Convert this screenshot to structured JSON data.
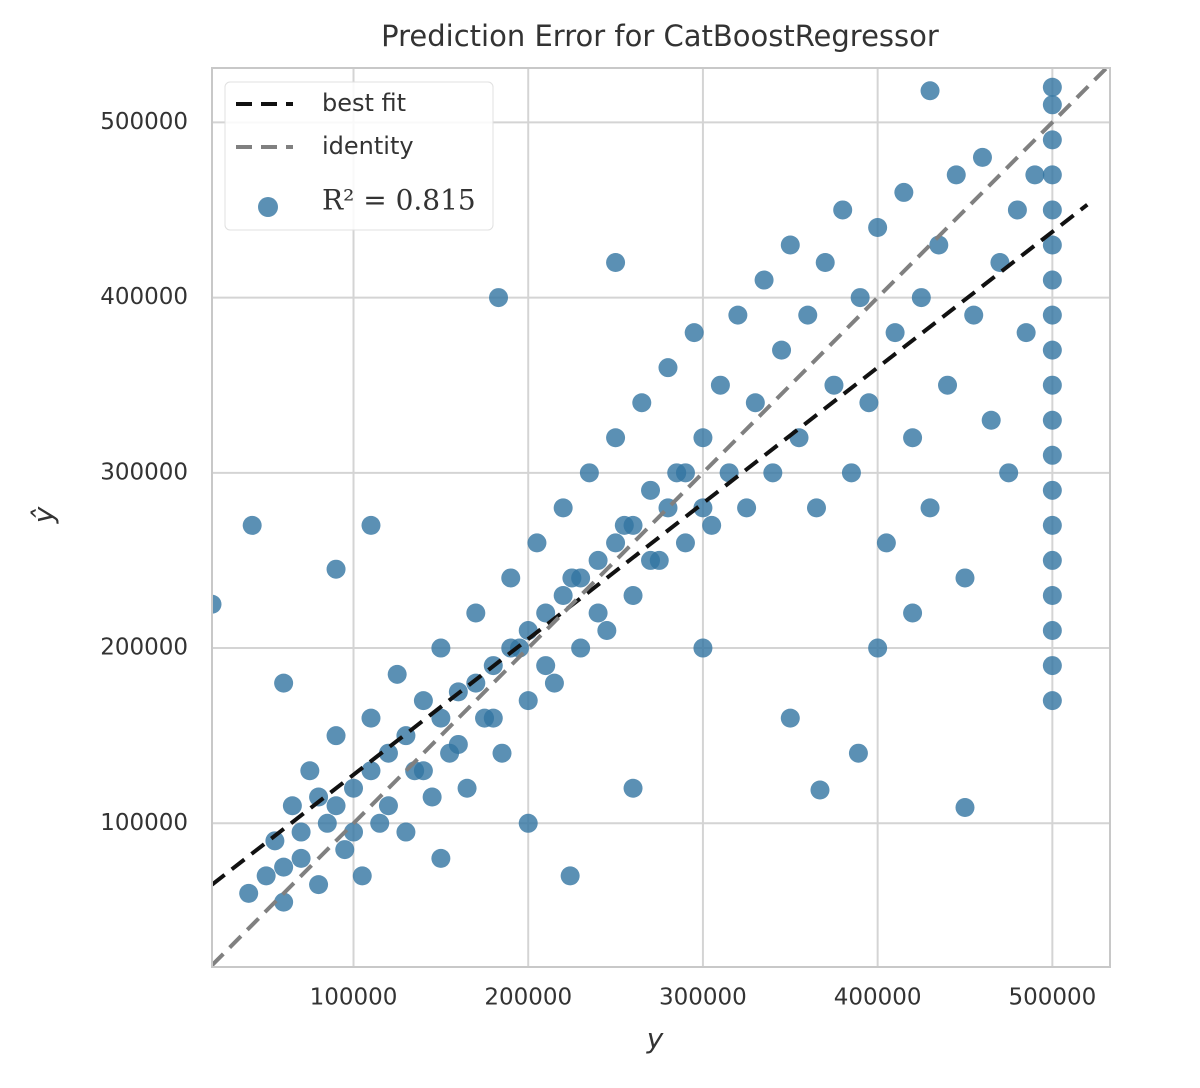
{
  "chart_data": {
    "type": "scatter",
    "title": "Prediction Error for CatBoostRegressor",
    "x_label": "y",
    "y_label": "ŷ",
    "xlim": [
      19000,
      533000
    ],
    "ylim": [
      18000,
      531000
    ],
    "xticks": [
      100000,
      200000,
      300000,
      400000,
      500000
    ],
    "yticks": [
      100000,
      200000,
      300000,
      400000,
      500000
    ],
    "grid": true,
    "legend": "upper left",
    "lines": [
      {
        "name": "best fit",
        "color": "#111111",
        "x": [
          19000,
          520000
        ],
        "values": [
          65000,
          453000
        ]
      },
      {
        "name": "identity",
        "color": "#808080",
        "x": [
          19000,
          531000
        ],
        "values": [
          19000,
          531000
        ]
      }
    ],
    "series": [
      {
        "name": "R² = 0.815",
        "color": "#3274a1",
        "x": [
          40000,
          50000,
          55000,
          60000,
          65000,
          70000,
          75000,
          80000,
          85000,
          90000,
          95000,
          100000,
          105000,
          110000,
          115000,
          120000,
          125000,
          130000,
          135000,
          140000,
          145000,
          150000,
          155000,
          160000,
          165000,
          170000,
          175000,
          180000,
          185000,
          190000,
          195000,
          200000,
          205000,
          210000,
          215000,
          220000,
          225000,
          230000,
          235000,
          240000,
          245000,
          250000,
          255000,
          260000,
          265000,
          270000,
          275000,
          280000,
          285000,
          290000,
          295000,
          300000,
          305000,
          310000,
          315000,
          320000,
          325000,
          330000,
          335000,
          340000,
          345000,
          350000,
          355000,
          360000,
          365000,
          370000,
          375000,
          380000,
          385000,
          390000,
          395000,
          400000,
          405000,
          410000,
          415000,
          420000,
          425000,
          430000,
          435000,
          440000,
          445000,
          450000,
          455000,
          460000,
          465000,
          470000,
          475000,
          480000,
          485000,
          490000,
          60000,
          70000,
          80000,
          90000,
          100000,
          110000,
          120000,
          130000,
          140000,
          150000,
          160000,
          170000,
          180000,
          190000,
          200000,
          210000,
          220000,
          230000,
          240000,
          250000,
          260000,
          270000,
          280000,
          290000,
          300000,
          19000,
          42000,
          183000,
          250000,
          430000,
          450000,
          224000,
          389000,
          367000,
          60000,
          90000,
          110000,
          300000,
          350000,
          400000,
          420000,
          150000,
          200000,
          260000,
          500000,
          500000,
          500000,
          500000,
          500000,
          500000,
          500000,
          500000,
          500000,
          500000,
          500000,
          500000,
          500000,
          500000,
          500000,
          500000,
          500000,
          500000,
          500000
        ],
        "values": [
          60000,
          70000,
          90000,
          55000,
          110000,
          80000,
          130000,
          65000,
          100000,
          150000,
          85000,
          120000,
          70000,
          160000,
          100000,
          140000,
          185000,
          95000,
          130000,
          170000,
          115000,
          200000,
          140000,
          175000,
          120000,
          220000,
          160000,
          190000,
          140000,
          240000,
          200000,
          170000,
          260000,
          220000,
          180000,
          280000,
          240000,
          200000,
          300000,
          250000,
          210000,
          320000,
          270000,
          230000,
          340000,
          290000,
          250000,
          360000,
          300000,
          260000,
          380000,
          320000,
          270000,
          350000,
          300000,
          390000,
          280000,
          340000,
          410000,
          300000,
          370000,
          430000,
          320000,
          390000,
          280000,
          420000,
          350000,
          450000,
          300000,
          400000,
          340000,
          440000,
          260000,
          380000,
          460000,
          320000,
          400000,
          280000,
          430000,
          350000,
          470000,
          240000,
          390000,
          480000,
          330000,
          420000,
          300000,
          450000,
          380000,
          470000,
          75000,
          95000,
          115000,
          110000,
          95000,
          130000,
          110000,
          150000,
          130000,
          160000,
          145000,
          180000,
          160000,
          200000,
          210000,
          190000,
          230000,
          240000,
          220000,
          260000,
          270000,
          250000,
          280000,
          300000,
          280000,
          225000,
          270000,
          400000,
          420000,
          518000,
          109000,
          70000,
          140000,
          119000,
          180000,
          245000,
          270000,
          200000,
          160000,
          200000,
          220000,
          80000,
          100000,
          120000,
          170000,
          210000,
          250000,
          290000,
          330000,
          370000,
          410000,
          450000,
          490000,
          520000,
          190000,
          230000,
          270000,
          310000,
          350000,
          390000,
          430000,
          470000,
          510000
        ]
      }
    ]
  }
}
